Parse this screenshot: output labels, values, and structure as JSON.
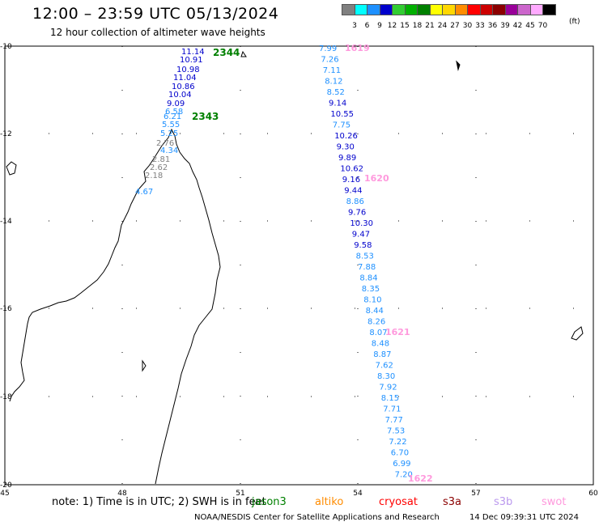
{
  "header": {
    "title": "12:00 – 23:59 UTC 05/13/2024",
    "subtitle": "12 hour collection of altimeter wave heights"
  },
  "legend": {
    "unit": "(ft)",
    "bins": [
      {
        "label": "3",
        "color": "#808080"
      },
      {
        "label": "6",
        "color": "#00ffff"
      },
      {
        "label": "9",
        "color": "#1e90ff"
      },
      {
        "label": "12",
        "color": "#0000cc"
      },
      {
        "label": "15",
        "color": "#32cd32"
      },
      {
        "label": "18",
        "color": "#00b000"
      },
      {
        "label": "21",
        "color": "#008000"
      },
      {
        "label": "24",
        "color": "#ffff00"
      },
      {
        "label": "27",
        "color": "#ffd700"
      },
      {
        "label": "30",
        "color": "#ff8c00"
      },
      {
        "label": "33",
        "color": "#ff0000"
      },
      {
        "label": "36",
        "color": "#cc0000"
      },
      {
        "label": "39",
        "color": "#8b0000"
      },
      {
        "label": "42",
        "color": "#990099"
      },
      {
        "label": "45",
        "color": "#cc66cc"
      },
      {
        "label": "70",
        "color": "#ffaaff"
      },
      {
        "label": "",
        "color": "#000000"
      }
    ]
  },
  "map": {
    "lon_ticks": [
      "45",
      "48",
      "51",
      "54",
      "57",
      "60"
    ],
    "lat_ticks": [
      "-10",
      "-12",
      "-14",
      "-16",
      "-18",
      "-20"
    ],
    "lon_range": [
      45,
      60
    ],
    "lat_range": [
      -20,
      -10
    ]
  },
  "passes": [
    {
      "time": "2344",
      "color": "#008000"
    },
    {
      "time": "2343",
      "color": "#008000"
    },
    {
      "time": "1619",
      "color": "#ff99dd"
    },
    {
      "time": "1620",
      "color": "#ff99dd"
    },
    {
      "time": "1621",
      "color": "#ff99dd"
    },
    {
      "time": "1622",
      "color": "#ff99dd"
    }
  ],
  "track_jason": [
    {
      "value": "11.14",
      "color": "#0000cc"
    },
    {
      "value": "10.91",
      "color": "#0000cc"
    },
    {
      "value": "10.98",
      "color": "#0000cc"
    },
    {
      "value": "11.04",
      "color": "#0000cc"
    },
    {
      "value": "10.86",
      "color": "#0000cc"
    },
    {
      "value": "10.04",
      "color": "#0000cc"
    },
    {
      "value": "9.09",
      "color": "#0000cc"
    },
    {
      "value": "6.58",
      "color": "#1e90ff"
    },
    {
      "value": "6.21",
      "color": "#1e90ff"
    },
    {
      "value": "5.55",
      "color": "#1e90ff"
    },
    {
      "value": "5.25",
      "color": "#1e90ff"
    },
    {
      "value": "2.76",
      "color": "#808080"
    },
    {
      "value": "4.34",
      "color": "#1e90ff"
    },
    {
      "value": "2.81",
      "color": "#808080"
    },
    {
      "value": "2.62",
      "color": "#808080"
    },
    {
      "value": "2.18",
      "color": "#808080"
    },
    {
      "value": "4.67",
      "color": "#1e90ff"
    }
  ],
  "track_sentinel": [
    {
      "value": "7.99",
      "color": "#1e90ff"
    },
    {
      "value": "7.26",
      "color": "#1e90ff"
    },
    {
      "value": "7.11",
      "color": "#1e90ff"
    },
    {
      "value": "8.12",
      "color": "#1e90ff"
    },
    {
      "value": "8.52",
      "color": "#1e90ff"
    },
    {
      "value": "9.14",
      "color": "#0000cc"
    },
    {
      "value": "10.55",
      "color": "#0000cc"
    },
    {
      "value": "7.75",
      "color": "#1e90ff"
    },
    {
      "value": "10.26",
      "color": "#0000cc"
    },
    {
      "value": "9.30",
      "color": "#0000cc"
    },
    {
      "value": "9.89",
      "color": "#0000cc"
    },
    {
      "value": "10.62",
      "color": "#0000cc"
    },
    {
      "value": "9.16",
      "color": "#0000cc"
    },
    {
      "value": "9.44",
      "color": "#0000cc"
    },
    {
      "value": "8.86",
      "color": "#1e90ff"
    },
    {
      "value": "9.76",
      "color": "#0000cc"
    },
    {
      "value": "10.30",
      "color": "#0000cc"
    },
    {
      "value": "9.47",
      "color": "#0000cc"
    },
    {
      "value": "9.58",
      "color": "#0000cc"
    },
    {
      "value": "8.53",
      "color": "#1e90ff"
    },
    {
      "value": "7.88",
      "color": "#1e90ff"
    },
    {
      "value": "8.84",
      "color": "#1e90ff"
    },
    {
      "value": "8.35",
      "color": "#1e90ff"
    },
    {
      "value": "8.10",
      "color": "#1e90ff"
    },
    {
      "value": "8.44",
      "color": "#1e90ff"
    },
    {
      "value": "8.26",
      "color": "#1e90ff"
    },
    {
      "value": "8.07",
      "color": "#1e90ff"
    },
    {
      "value": "8.48",
      "color": "#1e90ff"
    },
    {
      "value": "8.87",
      "color": "#1e90ff"
    },
    {
      "value": "7.62",
      "color": "#1e90ff"
    },
    {
      "value": "8.30",
      "color": "#1e90ff"
    },
    {
      "value": "7.92",
      "color": "#1e90ff"
    },
    {
      "value": "8.15",
      "color": "#1e90ff"
    },
    {
      "value": "7.71",
      "color": "#1e90ff"
    },
    {
      "value": "7.77",
      "color": "#1e90ff"
    },
    {
      "value": "7.53",
      "color": "#1e90ff"
    },
    {
      "value": "7.22",
      "color": "#1e90ff"
    },
    {
      "value": "6.70",
      "color": "#1e90ff"
    },
    {
      "value": "6.99",
      "color": "#1e90ff"
    },
    {
      "value": "7.20",
      "color": "#1e90ff"
    }
  ],
  "footer": {
    "note": "note:  1) Time is in UTC; 2) SWH is in feet",
    "satellites": [
      {
        "name": "jason3",
        "color": "#008000"
      },
      {
        "name": "altiko",
        "color": "#ff8c00"
      },
      {
        "name": "cryosat",
        "color": "#ff0000"
      },
      {
        "name": "s3a",
        "color": "#8b0000"
      },
      {
        "name": "s3b",
        "color": "#bb99ee"
      },
      {
        "name": "swot",
        "color": "#ff99dd"
      }
    ],
    "credit": "NOAA/NESDIS Center for Satellite Applications and Research",
    "timestamp": "14 Dec 09:39:31 UTC 2024"
  }
}
